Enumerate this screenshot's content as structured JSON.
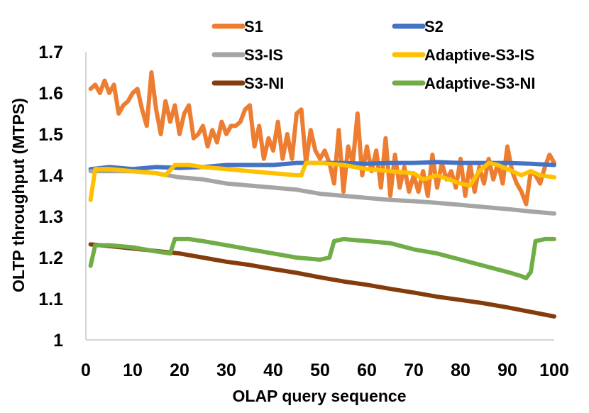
{
  "chart_data": {
    "type": "line",
    "title": "",
    "xlabel": "OLAP query sequence",
    "ylabel": "OLTP throughput (MTPS)",
    "xlim": [
      0,
      100
    ],
    "ylim": [
      1.0,
      1.7
    ],
    "xticks": [
      0,
      10,
      20,
      30,
      40,
      50,
      60,
      70,
      80,
      90,
      100
    ],
    "yticks": [
      1,
      1.1,
      1.2,
      1.3,
      1.4,
      1.5,
      1.6,
      1.7
    ],
    "ytick_labels": [
      "1",
      "1.1",
      "1.2",
      "1.3",
      "1.4",
      "1.5",
      "1.6",
      "1.7"
    ],
    "legend_position": "top",
    "series": [
      {
        "name": "S1",
        "color": "#ED7D31",
        "points": [
          [
            1,
            1.61
          ],
          [
            2,
            1.62
          ],
          [
            3,
            1.6
          ],
          [
            4,
            1.63
          ],
          [
            5,
            1.6
          ],
          [
            6,
            1.62
          ],
          [
            7,
            1.55
          ],
          [
            8,
            1.57
          ],
          [
            9,
            1.58
          ],
          [
            10,
            1.6
          ],
          [
            11,
            1.61
          ],
          [
            12,
            1.56
          ],
          [
            13,
            1.52
          ],
          [
            14,
            1.65
          ],
          [
            15,
            1.56
          ],
          [
            16,
            1.5
          ],
          [
            17,
            1.58
          ],
          [
            18,
            1.53
          ],
          [
            19,
            1.57
          ],
          [
            20,
            1.5
          ],
          [
            21,
            1.55
          ],
          [
            22,
            1.57
          ],
          [
            23,
            1.49
          ],
          [
            24,
            1.5
          ],
          [
            25,
            1.52
          ],
          [
            26,
            1.47
          ],
          [
            27,
            1.51
          ],
          [
            28,
            1.48
          ],
          [
            29,
            1.53
          ],
          [
            30,
            1.5
          ],
          [
            31,
            1.52
          ],
          [
            32,
            1.52
          ],
          [
            33,
            1.53
          ],
          [
            34,
            1.56
          ],
          [
            35,
            1.57
          ],
          [
            36,
            1.47
          ],
          [
            37,
            1.52
          ],
          [
            38,
            1.44
          ],
          [
            39,
            1.49
          ],
          [
            40,
            1.46
          ],
          [
            41,
            1.53
          ],
          [
            42,
            1.44
          ],
          [
            43,
            1.5
          ],
          [
            44,
            1.44
          ],
          [
            45,
            1.55
          ],
          [
            46,
            1.56
          ],
          [
            47,
            1.43
          ],
          [
            48,
            1.51
          ],
          [
            49,
            1.46
          ],
          [
            50,
            1.44
          ],
          [
            51,
            1.46
          ],
          [
            52,
            1.43
          ],
          [
            53,
            1.38
          ],
          [
            54,
            1.51
          ],
          [
            55,
            1.36
          ],
          [
            56,
            1.47
          ],
          [
            57,
            1.43
          ],
          [
            58,
            1.55
          ],
          [
            59,
            1.4
          ],
          [
            60,
            1.47
          ],
          [
            61,
            1.41
          ],
          [
            62,
            1.46
          ],
          [
            63,
            1.37
          ],
          [
            64,
            1.49
          ],
          [
            65,
            1.35
          ],
          [
            66,
            1.45
          ],
          [
            67,
            1.37
          ],
          [
            68,
            1.42
          ],
          [
            69,
            1.36
          ],
          [
            70,
            1.4
          ],
          [
            71,
            1.36
          ],
          [
            72,
            1.41
          ],
          [
            73,
            1.35
          ],
          [
            74,
            1.45
          ],
          [
            75,
            1.37
          ],
          [
            76,
            1.43
          ],
          [
            77,
            1.39
          ],
          [
            78,
            1.41
          ],
          [
            79,
            1.37
          ],
          [
            80,
            1.44
          ],
          [
            81,
            1.35
          ],
          [
            82,
            1.43
          ],
          [
            83,
            1.36
          ],
          [
            84,
            1.42
          ],
          [
            85,
            1.38
          ],
          [
            86,
            1.44
          ],
          [
            87,
            1.39
          ],
          [
            88,
            1.43
          ],
          [
            89,
            1.38
          ],
          [
            90,
            1.47
          ],
          [
            91,
            1.41
          ],
          [
            92,
            1.38
          ],
          [
            93,
            1.36
          ],
          [
            94,
            1.33
          ],
          [
            95,
            1.41
          ],
          [
            96,
            1.4
          ],
          [
            97,
            1.38
          ],
          [
            98,
            1.42
          ],
          [
            99,
            1.45
          ],
          [
            100,
            1.43
          ]
        ]
      },
      {
        "name": "S2",
        "color": "#4472C4",
        "points": [
          [
            1,
            1.415
          ],
          [
            5,
            1.42
          ],
          [
            10,
            1.415
          ],
          [
            15,
            1.42
          ],
          [
            20,
            1.418
          ],
          [
            25,
            1.42
          ],
          [
            30,
            1.425
          ],
          [
            35,
            1.425
          ],
          [
            40,
            1.425
          ],
          [
            45,
            1.43
          ],
          [
            50,
            1.43
          ],
          [
            55,
            1.43
          ],
          [
            60,
            1.428
          ],
          [
            65,
            1.43
          ],
          [
            70,
            1.43
          ],
          [
            75,
            1.432
          ],
          [
            80,
            1.43
          ],
          [
            85,
            1.43
          ],
          [
            90,
            1.43
          ],
          [
            95,
            1.428
          ],
          [
            100,
            1.425
          ]
        ]
      },
      {
        "name": "S3-IS",
        "color": "#A5A5A5",
        "points": [
          [
            1,
            1.41
          ],
          [
            5,
            1.41
          ],
          [
            10,
            1.41
          ],
          [
            15,
            1.405
          ],
          [
            20,
            1.395
          ],
          [
            25,
            1.39
          ],
          [
            30,
            1.38
          ],
          [
            35,
            1.375
          ],
          [
            40,
            1.37
          ],
          [
            45,
            1.365
          ],
          [
            50,
            1.355
          ],
          [
            55,
            1.35
          ],
          [
            60,
            1.345
          ],
          [
            65,
            1.34
          ],
          [
            70,
            1.337
          ],
          [
            75,
            1.333
          ],
          [
            80,
            1.328
          ],
          [
            85,
            1.323
          ],
          [
            90,
            1.318
          ],
          [
            95,
            1.312
          ],
          [
            100,
            1.307
          ]
        ]
      },
      {
        "name": "Adaptive-S3-IS",
        "color": "#FFC000",
        "points": [
          [
            1,
            1.34
          ],
          [
            2,
            1.415
          ],
          [
            5,
            1.415
          ],
          [
            10,
            1.41
          ],
          [
            15,
            1.405
          ],
          [
            17,
            1.4
          ],
          [
            19,
            1.425
          ],
          [
            22,
            1.425
          ],
          [
            25,
            1.42
          ],
          [
            30,
            1.415
          ],
          [
            35,
            1.41
          ],
          [
            40,
            1.405
          ],
          [
            45,
            1.4
          ],
          [
            46,
            1.4
          ],
          [
            47,
            1.43
          ],
          [
            50,
            1.43
          ],
          [
            55,
            1.425
          ],
          [
            60,
            1.415
          ],
          [
            65,
            1.41
          ],
          [
            70,
            1.405
          ],
          [
            72,
            1.39
          ],
          [
            75,
            1.4
          ],
          [
            80,
            1.38
          ],
          [
            82,
            1.375
          ],
          [
            84,
            1.41
          ],
          [
            86,
            1.43
          ],
          [
            88,
            1.425
          ],
          [
            90,
            1.415
          ],
          [
            93,
            1.4
          ],
          [
            95,
            1.41
          ],
          [
            97,
            1.4
          ],
          [
            100,
            1.395
          ]
        ]
      },
      {
        "name": "S3-NI",
        "color": "#843C0C",
        "points": [
          [
            1,
            1.232
          ],
          [
            5,
            1.228
          ],
          [
            10,
            1.222
          ],
          [
            15,
            1.216
          ],
          [
            20,
            1.21
          ],
          [
            25,
            1.2
          ],
          [
            30,
            1.19
          ],
          [
            35,
            1.182
          ],
          [
            40,
            1.172
          ],
          [
            45,
            1.163
          ],
          [
            50,
            1.152
          ],
          [
            55,
            1.142
          ],
          [
            60,
            1.134
          ],
          [
            65,
            1.124
          ],
          [
            70,
            1.115
          ],
          [
            75,
            1.105
          ],
          [
            80,
            1.097
          ],
          [
            85,
            1.089
          ],
          [
            90,
            1.079
          ],
          [
            95,
            1.068
          ],
          [
            100,
            1.057
          ]
        ]
      },
      {
        "name": "Adaptive-S3-NI",
        "color": "#70AD47",
        "points": [
          [
            1,
            1.18
          ],
          [
            2,
            1.23
          ],
          [
            5,
            1.23
          ],
          [
            10,
            1.225
          ],
          [
            15,
            1.215
          ],
          [
            18,
            1.21
          ],
          [
            19,
            1.245
          ],
          [
            22,
            1.245
          ],
          [
            25,
            1.24
          ],
          [
            30,
            1.23
          ],
          [
            35,
            1.22
          ],
          [
            40,
            1.21
          ],
          [
            45,
            1.2
          ],
          [
            50,
            1.195
          ],
          [
            52,
            1.2
          ],
          [
            53,
            1.24
          ],
          [
            55,
            1.245
          ],
          [
            60,
            1.24
          ],
          [
            65,
            1.235
          ],
          [
            70,
            1.22
          ],
          [
            75,
            1.21
          ],
          [
            80,
            1.195
          ],
          [
            85,
            1.18
          ],
          [
            90,
            1.165
          ],
          [
            93,
            1.155
          ],
          [
            94,
            1.15
          ],
          [
            95,
            1.165
          ],
          [
            96,
            1.24
          ],
          [
            98,
            1.245
          ],
          [
            100,
            1.245
          ]
        ]
      }
    ]
  }
}
